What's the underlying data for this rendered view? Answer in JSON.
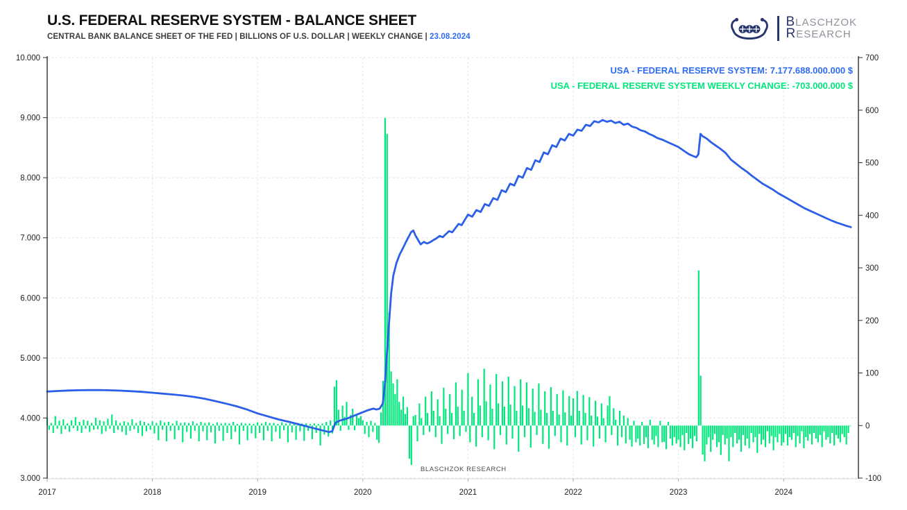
{
  "header": {
    "title": "U.S. FEDERAL RESERVE SYSTEM - BALANCE SHEET",
    "subtitle_text": "CENTRAL BANK BALANCE SHEET OF THE FED | BILLIONS OF U.S. DOLLAR | WEEKLY CHANGE | ",
    "subtitle_date": "23.08.2024"
  },
  "logo": {
    "line1_cap": "B",
    "line1_rest": "LASCHZOK",
    "line2_cap": "R",
    "line2_rest": "ESEARCH"
  },
  "legend": {
    "line1": "USA - FEDERAL RESERVE SYSTEM: 7.177.688.000.000 $",
    "line2": "USA - FEDERAL RESERVE SYSTEM WEEKLY CHANGE: -703.000.000 $"
  },
  "watermark": "BLASCHZOK  RESEARCH",
  "colors": {
    "line": "#2b5fe8",
    "bars": "#00e87c",
    "legend_blue": "#2e6cf4",
    "legend_green": "#00e87c",
    "grid": "#e4e4e6",
    "axis": "#2f2f2f",
    "tick_label": "#222222",
    "logo_navy": "#27366e",
    "logo_gray": "#8d929b"
  },
  "chart_data": {
    "type": [
      "line",
      "bar"
    ],
    "title": "U.S. FEDERAL RESERVE SYSTEM - BALANCE SHEET",
    "subtitle": "CENTRAL BANK BALANCE SHEET OF THE FED | BILLIONS OF U.S. DOLLAR | WEEKLY CHANGE",
    "as_of_date": "23.08.2024",
    "grid": true,
    "legend_position": "top-right",
    "x_axis": {
      "labels": [
        "2017",
        "2018",
        "2019",
        "2020",
        "2021",
        "2022",
        "2023",
        "2024"
      ],
      "values": [
        2017,
        2018,
        2019,
        2020,
        2021,
        2022,
        2023,
        2024
      ],
      "min": 2017,
      "max": 2024.72
    },
    "left_axis": {
      "labels": [
        "10.000",
        "9.000",
        "8.000",
        "7.000",
        "6.000",
        "5.000",
        "4.000",
        "3.000"
      ],
      "values": [
        10000,
        9000,
        8000,
        7000,
        6000,
        5000,
        4000,
        3000
      ],
      "unit": "billions USD",
      "min": 3000,
      "max": 10000
    },
    "right_axis": {
      "labels": [
        "700",
        "600",
        "500",
        "400",
        "300",
        "200",
        "100",
        "0",
        "-100"
      ],
      "values": [
        700,
        600,
        500,
        400,
        300,
        200,
        100,
        0,
        -100
      ],
      "unit": "billions USD weekly change",
      "min": -100,
      "max": 700
    },
    "line_series": {
      "name": "USA - FEDERAL RESERVE SYSTEM",
      "current_value_usd": "7.177.688.000.000 $",
      "axis": "left",
      "points": [
        [
          2017.0,
          4440
        ],
        [
          2017.1,
          4450
        ],
        [
          2017.2,
          4458
        ],
        [
          2017.3,
          4462
        ],
        [
          2017.4,
          4465
        ],
        [
          2017.5,
          4466
        ],
        [
          2017.6,
          4461
        ],
        [
          2017.7,
          4455
        ],
        [
          2017.8,
          4446
        ],
        [
          2017.9,
          4436
        ],
        [
          2018.0,
          4421
        ],
        [
          2018.1,
          4406
        ],
        [
          2018.2,
          4391
        ],
        [
          2018.3,
          4374
        ],
        [
          2018.4,
          4350
        ],
        [
          2018.5,
          4319
        ],
        [
          2018.6,
          4281
        ],
        [
          2018.7,
          4240
        ],
        [
          2018.8,
          4196
        ],
        [
          2018.9,
          4141
        ],
        [
          2019.0,
          4076
        ],
        [
          2019.1,
          4026
        ],
        [
          2019.2,
          3976
        ],
        [
          2019.3,
          3936
        ],
        [
          2019.4,
          3891
        ],
        [
          2019.5,
          3846
        ],
        [
          2019.6,
          3801
        ],
        [
          2019.68,
          3766
        ],
        [
          2019.71,
          3781
        ],
        [
          2019.74,
          3921
        ],
        [
          2019.78,
          3956
        ],
        [
          2019.85,
          3991
        ],
        [
          2019.92,
          4041
        ],
        [
          2020.0,
          4096
        ],
        [
          2020.05,
          4131
        ],
        [
          2020.1,
          4156
        ],
        [
          2020.13,
          4141
        ],
        [
          2020.16,
          4156
        ],
        [
          2020.19,
          4241
        ],
        [
          2020.21,
          4551
        ],
        [
          2020.23,
          5101
        ],
        [
          2020.25,
          5601
        ],
        [
          2020.27,
          6081
        ],
        [
          2020.29,
          6371
        ],
        [
          2020.32,
          6581
        ],
        [
          2020.35,
          6721
        ],
        [
          2020.38,
          6821
        ],
        [
          2020.41,
          6931
        ],
        [
          2020.44,
          7031
        ],
        [
          2020.46,
          7096
        ],
        [
          2020.48,
          7121
        ],
        [
          2020.5,
          7041
        ],
        [
          2020.53,
          6951
        ],
        [
          2020.55,
          6891
        ],
        [
          2020.58,
          6931
        ],
        [
          2020.61,
          6906
        ],
        [
          2020.64,
          6926
        ],
        [
          2020.67,
          6961
        ],
        [
          2020.7,
          6991
        ],
        [
          2020.73,
          7031
        ],
        [
          2020.76,
          7011
        ],
        [
          2020.79,
          7061
        ],
        [
          2020.82,
          7111
        ],
        [
          2020.85,
          7091
        ],
        [
          2020.88,
          7161
        ],
        [
          2020.91,
          7231
        ],
        [
          2020.94,
          7211
        ],
        [
          2020.97,
          7301
        ],
        [
          2021.0,
          7386
        ],
        [
          2021.04,
          7351
        ],
        [
          2021.08,
          7461
        ],
        [
          2021.12,
          7431
        ],
        [
          2021.16,
          7561
        ],
        [
          2021.2,
          7531
        ],
        [
          2021.24,
          7661
        ],
        [
          2021.28,
          7631
        ],
        [
          2021.32,
          7791
        ],
        [
          2021.36,
          7761
        ],
        [
          2021.4,
          7901
        ],
        [
          2021.44,
          7871
        ],
        [
          2021.48,
          8031
        ],
        [
          2021.52,
          8001
        ],
        [
          2021.56,
          8161
        ],
        [
          2021.6,
          8131
        ],
        [
          2021.64,
          8291
        ],
        [
          2021.68,
          8261
        ],
        [
          2021.72,
          8421
        ],
        [
          2021.76,
          8391
        ],
        [
          2021.8,
          8541
        ],
        [
          2021.84,
          8511
        ],
        [
          2021.88,
          8651
        ],
        [
          2021.92,
          8621
        ],
        [
          2021.96,
          8731
        ],
        [
          2022.0,
          8701
        ],
        [
          2022.04,
          8801
        ],
        [
          2022.08,
          8781
        ],
        [
          2022.12,
          8881
        ],
        [
          2022.16,
          8861
        ],
        [
          2022.2,
          8941
        ],
        [
          2022.24,
          8921
        ],
        [
          2022.28,
          8961
        ],
        [
          2022.32,
          8931
        ],
        [
          2022.36,
          8951
        ],
        [
          2022.4,
          8911
        ],
        [
          2022.44,
          8931
        ],
        [
          2022.48,
          8881
        ],
        [
          2022.52,
          8901
        ],
        [
          2022.56,
          8851
        ],
        [
          2022.6,
          8831
        ],
        [
          2022.64,
          8791
        ],
        [
          2022.68,
          8771
        ],
        [
          2022.72,
          8731
        ],
        [
          2022.76,
          8701
        ],
        [
          2022.8,
          8661
        ],
        [
          2022.85,
          8631
        ],
        [
          2022.9,
          8591
        ],
        [
          2022.95,
          8551
        ],
        [
          2023.0,
          8511
        ],
        [
          2023.05,
          8451
        ],
        [
          2023.1,
          8391
        ],
        [
          2023.14,
          8361
        ],
        [
          2023.17,
          8341
        ],
        [
          2023.19,
          8391
        ],
        [
          2023.21,
          8731
        ],
        [
          2023.23,
          8691
        ],
        [
          2023.27,
          8651
        ],
        [
          2023.31,
          8591
        ],
        [
          2023.35,
          8541
        ],
        [
          2023.4,
          8481
        ],
        [
          2023.45,
          8411
        ],
        [
          2023.5,
          8301
        ],
        [
          2023.55,
          8231
        ],
        [
          2023.6,
          8161
        ],
        [
          2023.65,
          8101
        ],
        [
          2023.7,
          8031
        ],
        [
          2023.75,
          7966
        ],
        [
          2023.8,
          7901
        ],
        [
          2023.85,
          7851
        ],
        [
          2023.9,
          7801
        ],
        [
          2023.95,
          7741
        ],
        [
          2024.0,
          7691
        ],
        [
          2024.05,
          7641
        ],
        [
          2024.1,
          7591
        ],
        [
          2024.15,
          7541
        ],
        [
          2024.2,
          7491
        ],
        [
          2024.25,
          7451
        ],
        [
          2024.3,
          7411
        ],
        [
          2024.35,
          7371
        ],
        [
          2024.4,
          7331
        ],
        [
          2024.45,
          7291
        ],
        [
          2024.5,
          7256
        ],
        [
          2024.55,
          7226
        ],
        [
          2024.6,
          7196
        ],
        [
          2024.64,
          7178
        ]
      ]
    },
    "bar_series": {
      "name": "USA - FEDERAL RESERVE SYSTEM WEEKLY CHANGE",
      "current_value_usd": "-703.000.000 $",
      "axis": "right",
      "start_year": 2017.0,
      "weeks_per_year": 52,
      "weekly_values": [
        [
          14,
          -8,
          5,
          -14,
          18,
          -6,
          9,
          -16,
          12,
          -7,
          4,
          -12,
          10,
          -5,
          16,
          -10,
          7,
          -14,
          11,
          -6,
          9,
          -12,
          5,
          -8,
          15,
          -7,
          10,
          -16,
          8,
          -11,
          13,
          -6,
          21,
          -14,
          10,
          -8,
          5,
          -12,
          8,
          -18,
          6,
          -10,
          12,
          -7,
          5,
          -14,
          9,
          -20,
          7,
          -11,
          4,
          -8
        ],
        [
          8,
          -15,
          5,
          -28,
          10,
          -8,
          6,
          -30,
          7,
          -10,
          4,
          -26,
          9,
          -9,
          5,
          -32,
          6,
          -12,
          5,
          -25,
          8,
          -10,
          4,
          -30,
          7,
          -11,
          5,
          -28,
          6,
          -13,
          3,
          -34,
          6,
          -10,
          4,
          -29,
          5,
          -14,
          4,
          -26,
          7,
          -12,
          3,
          -36,
          5,
          -10,
          4,
          -28,
          4,
          -15,
          3,
          -24
        ],
        [
          6,
          -14,
          4,
          -28,
          7,
          -10,
          5,
          -30,
          5,
          -12,
          3,
          -25,
          6,
          -9,
          4,
          -32,
          4,
          -13,
          3,
          -27,
          5,
          -11,
          4,
          -29,
          4,
          -10,
          3,
          -26,
          4,
          -14,
          3,
          -38,
          4,
          -17,
          7,
          -21,
          10,
          -15,
          74,
          86,
          30,
          -10,
          38,
          16,
          45,
          -8,
          20,
          32,
          -9,
          22,
          14,
          18
        ],
        [
          10,
          -16,
          7,
          -22,
          9,
          -12,
          5,
          -27,
          -33,
          25,
          85,
          585,
          555,
          215,
          103,
          80,
          60,
          88,
          45,
          30,
          55,
          22,
          35,
          -63,
          -75,
          18,
          20,
          -30,
          42,
          14,
          -18,
          55,
          24,
          -12,
          65,
          28,
          -22,
          50,
          18,
          -35,
          72,
          32,
          -16,
          60,
          24,
          -26,
          82,
          36,
          -20,
          68,
          28,
          -12
        ],
        [
          100,
          -32,
          55,
          24,
          -40,
          88,
          38,
          -22,
          108,
          46,
          -28,
          78,
          32,
          -45,
          98,
          42,
          -18,
          84,
          36,
          -36,
          93,
          40,
          -25,
          75,
          28,
          -50,
          88,
          38,
          -22,
          82,
          33,
          -42,
          70,
          26,
          -18,
          80,
          30,
          -35,
          65,
          24,
          -44,
          73,
          28,
          -20,
          60,
          21,
          -32,
          67,
          25,
          -38,
          56,
          19
        ],
        [
          52,
          -22,
          66,
          28,
          -36,
          58,
          24,
          -28,
          54,
          19,
          -40,
          47,
          17,
          -25,
          42,
          14,
          -32,
          38,
          56,
          -18,
          33,
          11,
          -38,
          28,
          -22,
          19,
          -34,
          14,
          -27,
          -40,
          9,
          -32,
          -25,
          -38,
          7,
          -35,
          -22,
          -43,
          11,
          -27,
          -36,
          -20,
          -41,
          9,
          -32,
          -31,
          -45,
          7,
          -25,
          -38,
          -22,
          -34
        ],
        [
          -27,
          -41,
          -18,
          -47,
          -14,
          -35,
          -25,
          -43,
          -20,
          -30,
          295,
          95,
          -55,
          -68,
          -36,
          -22,
          -50,
          -27,
          -16,
          -41,
          -32,
          -56,
          -18,
          -36,
          -25,
          -68,
          -22,
          -41,
          -14,
          -34,
          -27,
          -50,
          -18,
          -38,
          -25,
          -43,
          -14,
          -32,
          -22,
          -52,
          -16,
          -36,
          -27,
          -41,
          -11,
          -34,
          -20,
          -47,
          -22,
          -32,
          -16,
          -38
        ],
        [
          -32,
          -16,
          -38,
          -22,
          -27,
          -14,
          -41,
          -20,
          -34,
          -11,
          -43,
          -22,
          -29,
          -16,
          -36,
          -14,
          -25,
          -32,
          -18,
          -41,
          -11,
          -27,
          -22,
          -34,
          -14,
          -38,
          -18,
          -25,
          -32,
          -16,
          -22,
          -36,
          -14,
          -0.7
        ]
      ]
    }
  }
}
